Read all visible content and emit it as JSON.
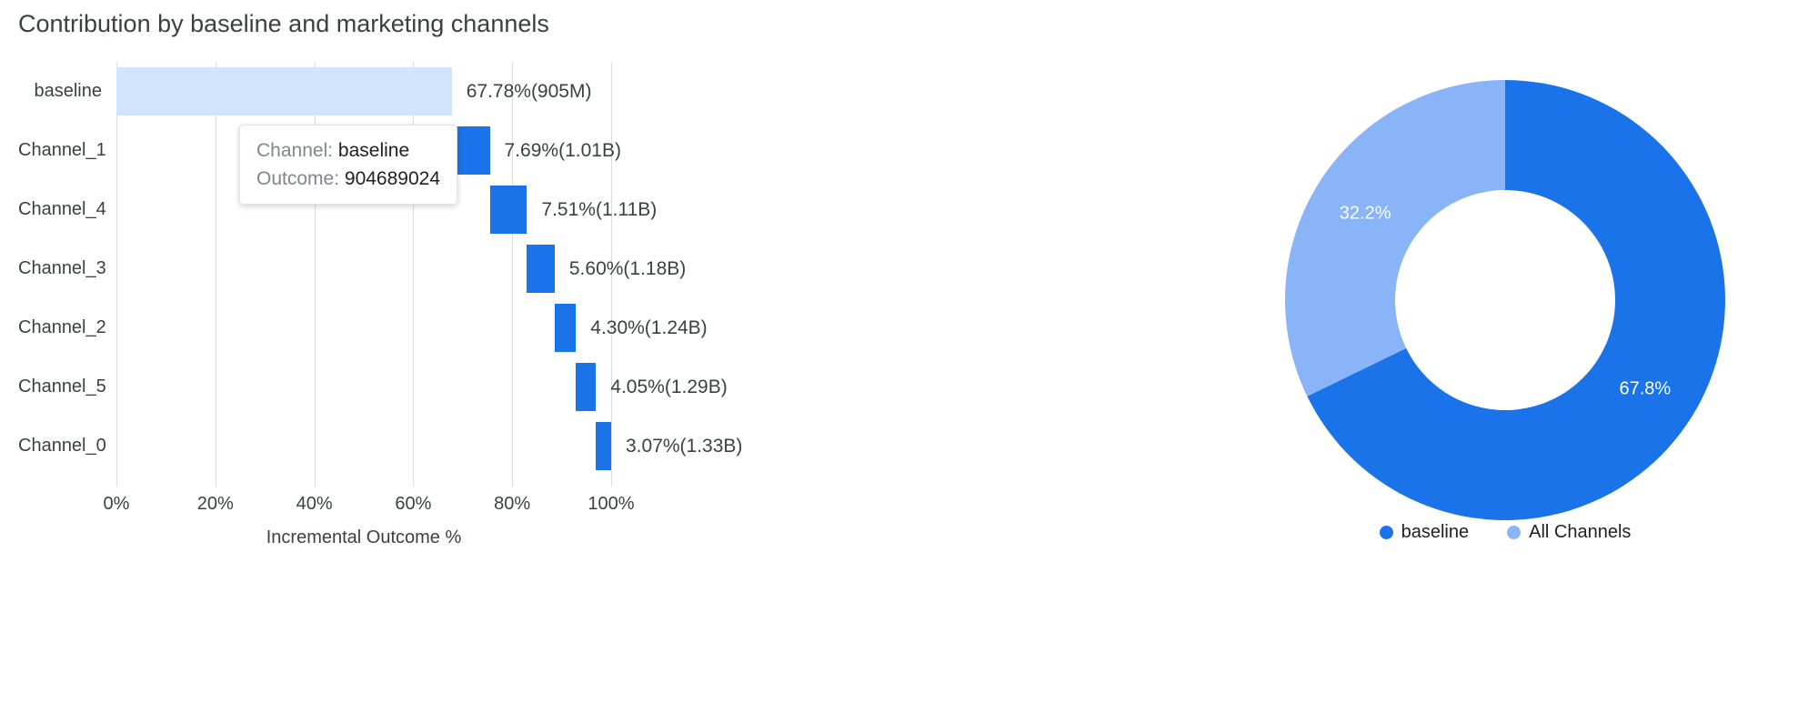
{
  "page": {
    "title": "Contribution by baseline and marketing channels"
  },
  "tooltip": {
    "channel_label": "Channel:",
    "channel_value": "baseline",
    "outcome_label": "Outcome:",
    "outcome_value": "904689024"
  },
  "chart_data": [
    {
      "type": "bar",
      "variant": "horizontal-waterfall",
      "title": "Contribution by baseline and marketing channels",
      "xlabel": "Incremental Outcome %",
      "xlim": [
        0,
        100
      ],
      "grid": true,
      "x_ticks": [
        {
          "value": 0,
          "label": "0%"
        },
        {
          "value": 20,
          "label": "20%"
        },
        {
          "value": 40,
          "label": "40%"
        },
        {
          "value": 60,
          "label": "60%"
        },
        {
          "value": 80,
          "label": "80%"
        },
        {
          "value": 100,
          "label": "100%"
        }
      ],
      "categories": [
        "baseline",
        "Channel_1",
        "Channel_4",
        "Channel_3",
        "Channel_2",
        "Channel_5",
        "Channel_0"
      ],
      "segments": [
        {
          "label": "baseline",
          "start": 0,
          "value": 67.78,
          "display": "67.78%(905M)",
          "color": "#d2e3fc"
        },
        {
          "label": "Channel_1",
          "start": 67.78,
          "value": 7.69,
          "display": "7.69%(1.01B)",
          "color": "#1a73e8"
        },
        {
          "label": "Channel_4",
          "start": 75.47,
          "value": 7.51,
          "display": "7.51%(1.11B)",
          "color": "#1a73e8"
        },
        {
          "label": "Channel_3",
          "start": 82.98,
          "value": 5.6,
          "display": "5.60%(1.18B)",
          "color": "#1a73e8"
        },
        {
          "label": "Channel_2",
          "start": 88.58,
          "value": 4.3,
          "display": "4.30%(1.24B)",
          "color": "#1a73e8"
        },
        {
          "label": "Channel_5",
          "start": 92.88,
          "value": 4.05,
          "display": "4.05%(1.29B)",
          "color": "#1a73e8"
        },
        {
          "label": "Channel_0",
          "start": 96.93,
          "value": 3.07,
          "display": "3.07%(1.33B)",
          "color": "#1a73e8"
        }
      ]
    },
    {
      "type": "pie",
      "variant": "donut",
      "legend_position": "bottom",
      "slices": [
        {
          "label": "baseline",
          "value": 67.8,
          "display": "67.8%",
          "color": "#1a73e8"
        },
        {
          "label": "All Channels",
          "value": 32.2,
          "display": "32.2%",
          "color": "#8ab4f8"
        }
      ]
    }
  ]
}
